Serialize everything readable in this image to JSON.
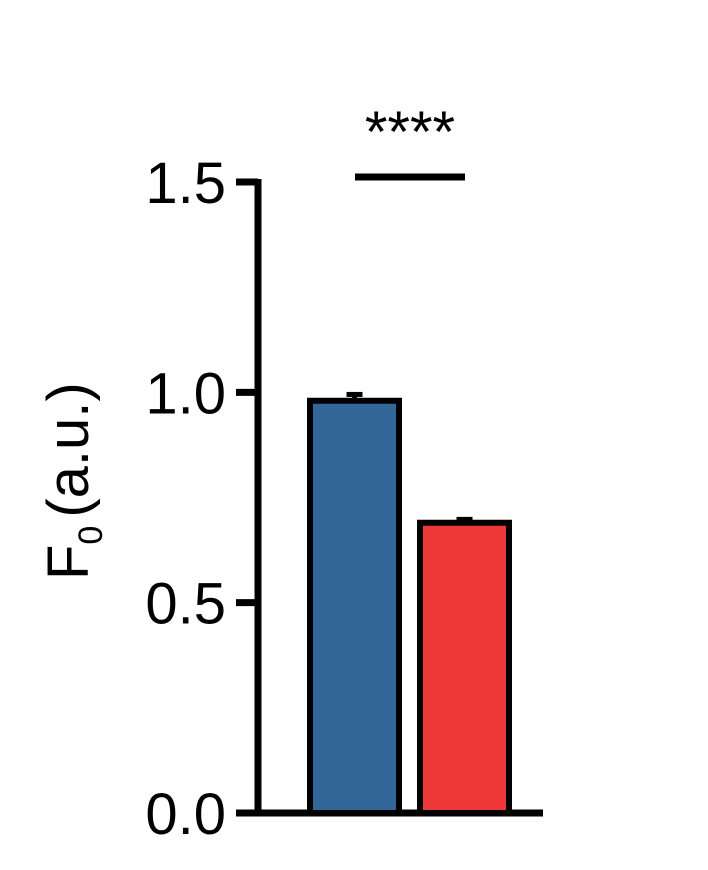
{
  "chart_data": {
    "type": "bar",
    "categories": [
      "",
      ""
    ],
    "values": [
      0.98,
      0.69
    ],
    "errors": [
      0.015,
      0.008
    ],
    "colors": [
      "#336699",
      "#ee3838"
    ],
    "ylabel_main": "F",
    "ylabel_sub": "0",
    "ylabel_unit": "(a.u.)",
    "ylim": [
      0,
      1.5
    ],
    "yticks": [
      "0.0",
      "0.5",
      "1.0",
      "1.5"
    ],
    "significance": "****",
    "grid": false
  }
}
